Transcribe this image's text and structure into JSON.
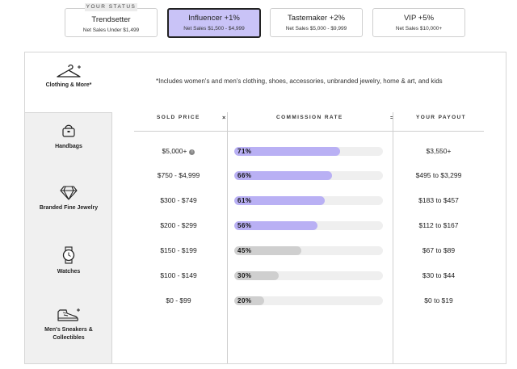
{
  "status_tag": "YOUR STATUS",
  "tiers": [
    {
      "name": "Trendsetter",
      "desc": "Net Sales Under $1,499"
    },
    {
      "name": "Influencer +1%",
      "desc": "Net Sales $1,500 - $4,999"
    },
    {
      "name": "Tastemaker +2%",
      "desc": "Net Sales $5,000 - $9,999"
    },
    {
      "name": "VIP +5%",
      "desc": "Net Sales $10,000+"
    }
  ],
  "categories": [
    {
      "label": "Clothing & More*",
      "icon": "hanger-icon"
    },
    {
      "label": "Handbags",
      "icon": "handbag-icon"
    },
    {
      "label": "Branded Fine Jewelry",
      "icon": "diamond-icon"
    },
    {
      "label": "Watches",
      "icon": "watch-icon"
    },
    {
      "label": "Men's Sneakers & Collectibles",
      "icon": "sneaker-icon"
    }
  ],
  "note": "*Includes women's and men's clothing, shoes, accessories, unbranded jewelry, home & art, and kids",
  "headers": {
    "sold_price": "SOLD PRICE",
    "times": "×",
    "commission_rate": "COMMISSION RATE",
    "equals": "=",
    "your_payout": "YOUR PAYOUT"
  },
  "colors": {
    "accent": "#c9c3f7",
    "bar_purple": "#b9b0f4",
    "bar_gray": "#cfcfcf",
    "track": "#efefef"
  },
  "rows": [
    {
      "price": "$5,000+",
      "info": "i",
      "rate": "71%",
      "rate_value": 0.71,
      "highlight": true,
      "payout": "$3,550+"
    },
    {
      "price": "$750 - $4,999",
      "rate": "66%",
      "rate_value": 0.66,
      "highlight": true,
      "payout": "$495 to $3,299"
    },
    {
      "price": "$300 - $749",
      "rate": "61%",
      "rate_value": 0.61,
      "highlight": true,
      "payout": "$183 to $457"
    },
    {
      "price": "$200 - $299",
      "rate": "56%",
      "rate_value": 0.56,
      "highlight": true,
      "payout": "$112 to $167"
    },
    {
      "price": "$150 - $199",
      "rate": "45%",
      "rate_value": 0.45,
      "highlight": false,
      "payout": "$67 to $89"
    },
    {
      "price": "$100 - $149",
      "rate": "30%",
      "rate_value": 0.3,
      "highlight": false,
      "payout": "$30 to $44"
    },
    {
      "price": "$0 - $99",
      "rate": "20%",
      "rate_value": 0.2,
      "highlight": false,
      "payout": "$0 to $19"
    }
  ]
}
